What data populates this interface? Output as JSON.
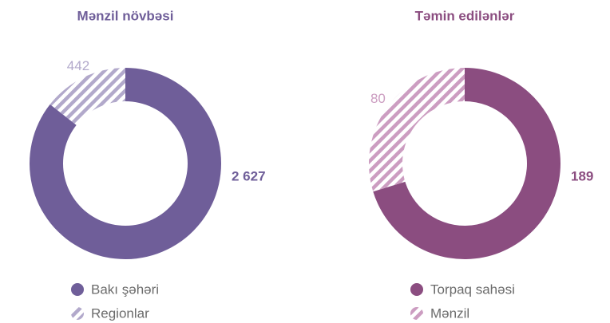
{
  "chart_data": [
    {
      "type": "pie",
      "title": "Mənzil növbəsi",
      "categories": [
        "Bakı şəhəri",
        "Regionlar"
      ],
      "values": [
        2627,
        442
      ],
      "value_labels": [
        "2 627",
        "442"
      ],
      "colors": [
        "#6f5e99",
        "#b2a9cb"
      ],
      "hatched": [
        false,
        true
      ]
    },
    {
      "type": "pie",
      "title": "Təmin edilənlər",
      "categories": [
        "Torpaq sahəsi",
        "Mənzil"
      ],
      "values": [
        189,
        80
      ],
      "value_labels": [
        "189",
        "80"
      ],
      "colors": [
        "#8b4d80",
        "#cc9dc1"
      ],
      "hatched": [
        false,
        true
      ]
    }
  ]
}
